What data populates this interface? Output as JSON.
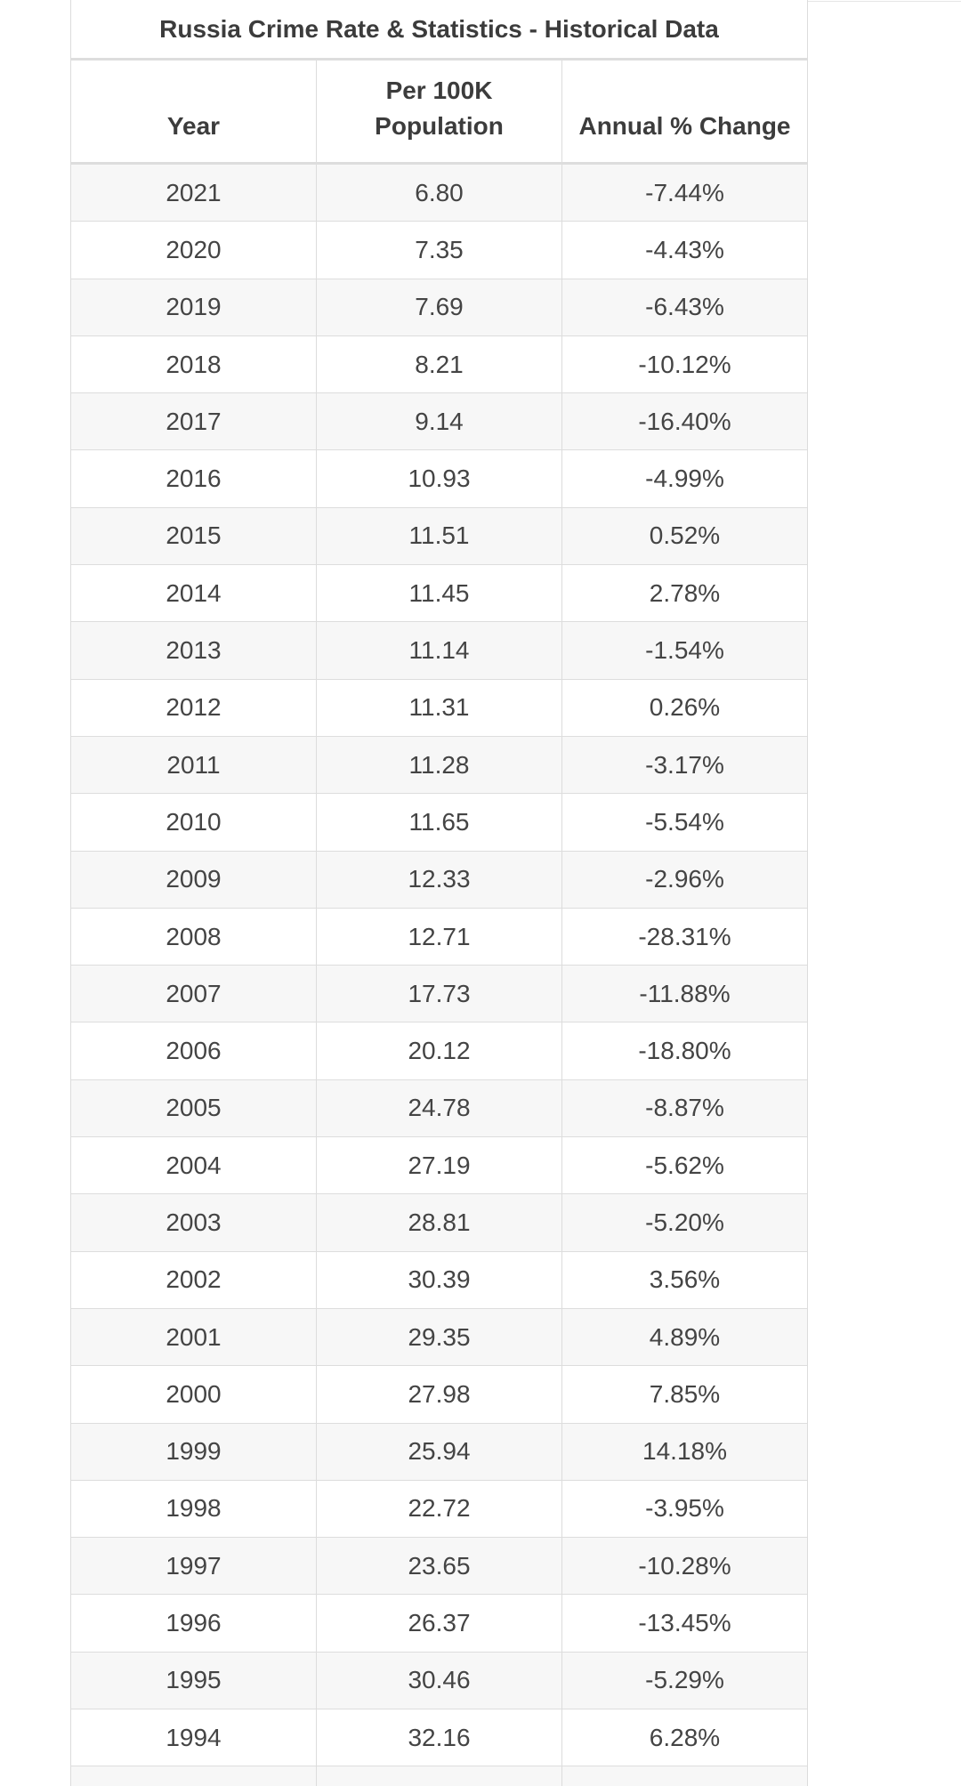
{
  "table": {
    "caption": "Russia Crime Rate & Statistics - Historical Data",
    "headers": {
      "year": "Year",
      "per100k_line1": "Per 100K",
      "per100k_line2": "Population",
      "change": "Annual % Change"
    },
    "rows": [
      {
        "year": "2021",
        "rate": "6.80",
        "change": "-7.44%"
      },
      {
        "year": "2020",
        "rate": "7.35",
        "change": "-4.43%"
      },
      {
        "year": "2019",
        "rate": "7.69",
        "change": "-6.43%"
      },
      {
        "year": "2018",
        "rate": "8.21",
        "change": "-10.12%"
      },
      {
        "year": "2017",
        "rate": "9.14",
        "change": "-16.40%"
      },
      {
        "year": "2016",
        "rate": "10.93",
        "change": "-4.99%"
      },
      {
        "year": "2015",
        "rate": "11.51",
        "change": "0.52%"
      },
      {
        "year": "2014",
        "rate": "11.45",
        "change": "2.78%"
      },
      {
        "year": "2013",
        "rate": "11.14",
        "change": "-1.54%"
      },
      {
        "year": "2012",
        "rate": "11.31",
        "change": "0.26%"
      },
      {
        "year": "2011",
        "rate": "11.28",
        "change": "-3.17%"
      },
      {
        "year": "2010",
        "rate": "11.65",
        "change": "-5.54%"
      },
      {
        "year": "2009",
        "rate": "12.33",
        "change": "-2.96%"
      },
      {
        "year": "2008",
        "rate": "12.71",
        "change": "-28.31%"
      },
      {
        "year": "2007",
        "rate": "17.73",
        "change": "-11.88%"
      },
      {
        "year": "2006",
        "rate": "20.12",
        "change": "-18.80%"
      },
      {
        "year": "2005",
        "rate": "24.78",
        "change": "-8.87%"
      },
      {
        "year": "2004",
        "rate": "27.19",
        "change": "-5.62%"
      },
      {
        "year": "2003",
        "rate": "28.81",
        "change": "-5.20%"
      },
      {
        "year": "2002",
        "rate": "30.39",
        "change": "3.56%"
      },
      {
        "year": "2001",
        "rate": "29.35",
        "change": "4.89%"
      },
      {
        "year": "2000",
        "rate": "27.98",
        "change": "7.85%"
      },
      {
        "year": "1999",
        "rate": "25.94",
        "change": "14.18%"
      },
      {
        "year": "1998",
        "rate": "22.72",
        "change": "-3.95%"
      },
      {
        "year": "1997",
        "rate": "23.65",
        "change": "-10.28%"
      },
      {
        "year": "1996",
        "rate": "26.37",
        "change": "-13.45%"
      },
      {
        "year": "1995",
        "rate": "30.46",
        "change": "-5.29%"
      },
      {
        "year": "1994",
        "rate": "32.16",
        "change": "6.28%"
      },
      {
        "year": "",
        "rate": "",
        "change": ""
      }
    ]
  }
}
